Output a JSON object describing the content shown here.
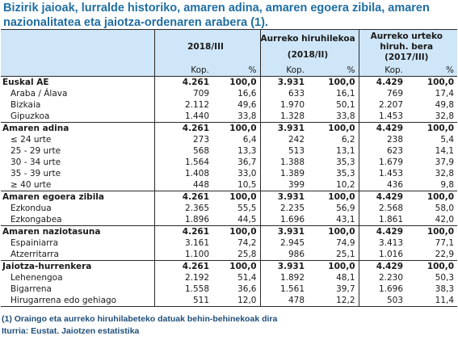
{
  "title": "Bizirik jaioak, lurralde historiko, amaren adina, amaren egoera zibila, amaren nazionalitatea eta jaiotza-ordenaren arabera (1).",
  "header": {
    "col1": "2018/III",
    "col2_line1": "Aurreko hiruhilekoa",
    "col2_line2": "(2018/II)",
    "col3_line1": "Aurreko urteko",
    "col3_line2": "hiruh. bera",
    "col3_line3": "(2017/III)",
    "kop": "Kop.",
    "pct": "%"
  },
  "rows": [
    {
      "label": "Euskal AE",
      "bold": true,
      "v": [
        "4.261",
        "100,0",
        "3.931",
        "100,0",
        "4.429",
        "100,0"
      ]
    },
    {
      "label": "Araba / Álava",
      "bold": false,
      "v": [
        "709",
        "16,6",
        "633",
        "16,1",
        "769",
        "17,4"
      ]
    },
    {
      "label": "Bizkaia",
      "bold": false,
      "v": [
        "2.112",
        "49,6",
        "1.970",
        "50,1",
        "2.207",
        "49,8"
      ]
    },
    {
      "label": "Gipuzkoa",
      "bold": false,
      "v": [
        "1.440",
        "33,8",
        "1.328",
        "33,8",
        "1.453",
        "32,8"
      ]
    },
    {
      "label": "Amaren adina",
      "bold": true,
      "v": [
        "4.261",
        "100,0",
        "3.931",
        "100,0",
        "4.429",
        "100,0"
      ]
    },
    {
      "label": "≤ 24 urte",
      "bold": false,
      "v": [
        "273",
        "6,4",
        "242",
        "6,2",
        "238",
        "5,4"
      ]
    },
    {
      "label": "25 - 29 urte",
      "bold": false,
      "v": [
        "568",
        "13,3",
        "513",
        "13,1",
        "623",
        "14,1"
      ]
    },
    {
      "label": "30 - 34 urte",
      "bold": false,
      "v": [
        "1.564",
        "36,7",
        "1.388",
        "35,3",
        "1.679",
        "37,9"
      ]
    },
    {
      "label": "35 - 39 urte",
      "bold": false,
      "v": [
        "1.408",
        "33,0",
        "1.389",
        "35,3",
        "1.453",
        "32,8"
      ]
    },
    {
      "label": "≥ 40 urte",
      "bold": false,
      "v": [
        "448",
        "10,5",
        "399",
        "10,2",
        "436",
        "9,8"
      ]
    },
    {
      "label": "Amaren egoera zibila",
      "bold": true,
      "v": [
        "4.261",
        "100,0",
        "3.931",
        "100,0",
        "4.429",
        "100,0"
      ]
    },
    {
      "label": "Ezkondua",
      "bold": false,
      "v": [
        "2.365",
        "55,5",
        "2.235",
        "56,9",
        "2.568",
        "58,0"
      ]
    },
    {
      "label": "Ezkongabea",
      "bold": false,
      "v": [
        "1.896",
        "44,5",
        "1.696",
        "43,1",
        "1.861",
        "42,0"
      ]
    },
    {
      "label": "Amaren naziotasuna",
      "bold": true,
      "v": [
        "4.261",
        "100,0",
        "3.931",
        "100,0",
        "4.429",
        "100,0"
      ]
    },
    {
      "label": "Espainiarra",
      "bold": false,
      "v": [
        "3.161",
        "74,2",
        "2.945",
        "74,9",
        "3.413",
        "77,1"
      ]
    },
    {
      "label": "Atzerritarra",
      "bold": false,
      "v": [
        "1.100",
        "25,8",
        "986",
        "25,1",
        "1.016",
        "22,9"
      ]
    },
    {
      "label": "Jaiotza-hurrenkera",
      "bold": true,
      "v": [
        "4.261",
        "100,0",
        "3.931",
        "100,0",
        "4.429",
        "100,0"
      ]
    },
    {
      "label": "Lehenengoa",
      "bold": false,
      "v": [
        "2.192",
        "51,4",
        "1.892",
        "48,1",
        "2.230",
        "50,3"
      ]
    },
    {
      "label": "Bigarrena",
      "bold": false,
      "v": [
        "1.558",
        "36,6",
        "1.561",
        "39,7",
        "1.696",
        "38,3"
      ]
    },
    {
      "label": "Hirugarrena edo gehiago",
      "bold": false,
      "v": [
        "511",
        "12,0",
        "478",
        "12,2",
        "503",
        "11,4"
      ]
    }
  ],
  "footnote": "(1) Oraingo eta aurreko hiruhilabeteko datuak behin-behinekoak dira",
  "source": "Iturria: Eustat. Jaiotzen estatistika"
}
